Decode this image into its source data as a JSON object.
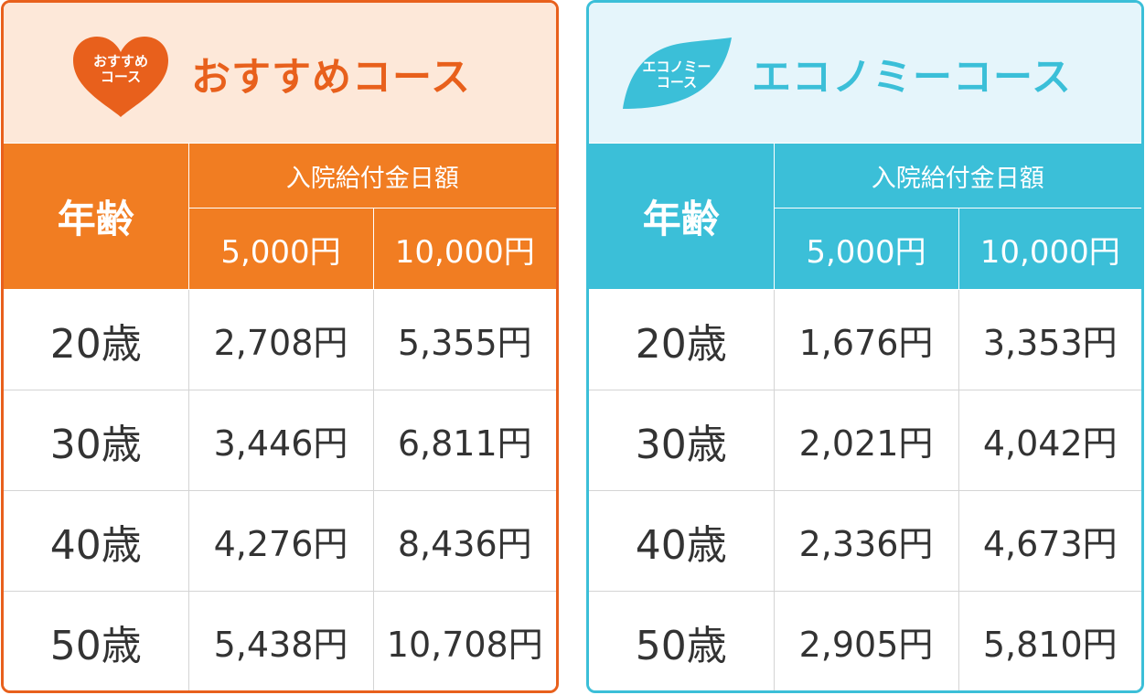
{
  "recommended": {
    "badge": [
      "おすすめ",
      "コース"
    ],
    "title": "おすすめコース",
    "age_header": "年齢",
    "benefit_header": "入院給付金日額",
    "amount_headers": [
      "5,000円",
      "10,000円"
    ],
    "rows": [
      {
        "age": "20歳",
        "v1": "2,708円",
        "v2": "5,355円"
      },
      {
        "age": "30歳",
        "v1": "3,446円",
        "v2": "6,811円"
      },
      {
        "age": "40歳",
        "v1": "4,276円",
        "v2": "8,436円"
      },
      {
        "age": "50歳",
        "v1": "5,438円",
        "v2": "10,708円"
      }
    ]
  },
  "economy": {
    "badge": [
      "エコノミー",
      "コース"
    ],
    "title": "エコノミーコース",
    "age_header": "年齢",
    "benefit_header": "入院給付金日額",
    "amount_headers": [
      "5,000円",
      "10,000円"
    ],
    "rows": [
      {
        "age": "20歳",
        "v1": "1,676円",
        "v2": "3,353円"
      },
      {
        "age": "30歳",
        "v1": "2,021円",
        "v2": "4,042円"
      },
      {
        "age": "40歳",
        "v1": "2,336円",
        "v2": "4,673円"
      },
      {
        "age": "50歳",
        "v1": "2,905円",
        "v2": "5,810円"
      }
    ]
  },
  "colors": {
    "orange_accent": "#e8601c",
    "orange_header": "#f17d22",
    "orange_bg": "#fde8d9",
    "blue_accent": "#3bbfd8",
    "blue_bg": "#e5f5fb",
    "text": "#333333"
  },
  "icons": {
    "recommended_badge": "heart-badge-icon",
    "economy_badge": "leaf-badge-icon"
  }
}
